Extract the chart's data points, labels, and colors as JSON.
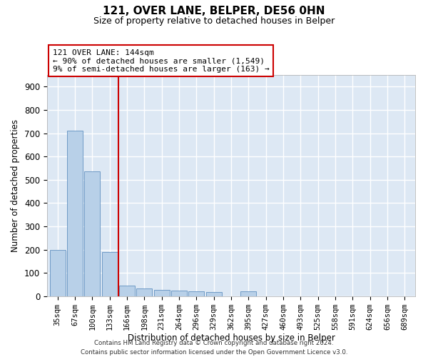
{
  "title": "121, OVER LANE, BELPER, DE56 0HN",
  "subtitle": "Size of property relative to detached houses in Belper",
  "xlabel": "Distribution of detached houses by size in Belper",
  "ylabel": "Number of detached properties",
  "categories": [
    "35sqm",
    "67sqm",
    "100sqm",
    "133sqm",
    "166sqm",
    "198sqm",
    "231sqm",
    "264sqm",
    "296sqm",
    "329sqm",
    "362sqm",
    "395sqm",
    "427sqm",
    "460sqm",
    "493sqm",
    "525sqm",
    "558sqm",
    "591sqm",
    "624sqm",
    "656sqm",
    "689sqm"
  ],
  "values": [
    200,
    710,
    535,
    190,
    45,
    35,
    28,
    25,
    20,
    18,
    0,
    20,
    0,
    0,
    0,
    0,
    0,
    0,
    0,
    0,
    0
  ],
  "bar_color": "#b8d0e8",
  "bar_edge_color": "#6090c0",
  "vline_x": 3.5,
  "vline_color": "#cc0000",
  "annotation_text": "121 OVER LANE: 144sqm\n← 90% of detached houses are smaller (1,549)\n9% of semi-detached houses are larger (163) →",
  "annotation_box_color": "#ffffff",
  "annotation_box_edge": "#cc0000",
  "bg_color": "#dde8f4",
  "grid_color": "#ffffff",
  "footer": "Contains HM Land Registry data © Crown copyright and database right 2024.\nContains public sector information licensed under the Open Government Licence v3.0.",
  "ylim": [
    0,
    950
  ],
  "yticks": [
    0,
    100,
    200,
    300,
    400,
    500,
    600,
    700,
    800,
    900
  ]
}
